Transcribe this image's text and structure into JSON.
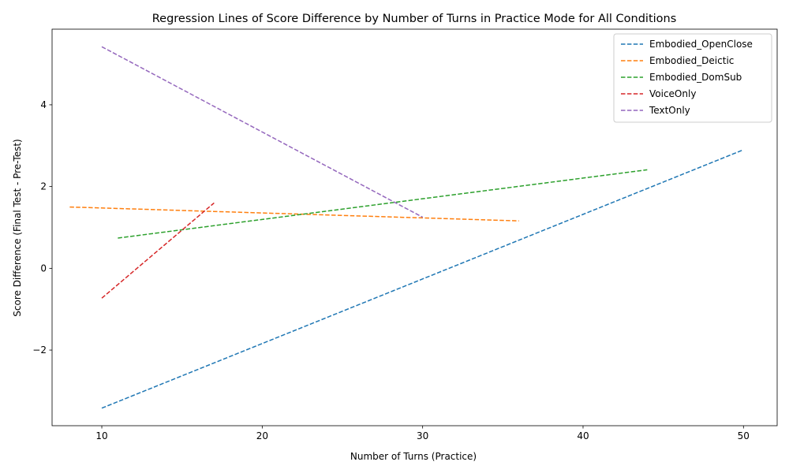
{
  "chart_data": {
    "type": "line",
    "title": "Regression Lines of Score Difference by Number of Turns in Practice Mode for All Conditions",
    "xlabel": "Number of Turns (Practice)",
    "ylabel": "Score Difference (Final Test - Pre-Test)",
    "xlim": [
      6.9,
      52.1
    ],
    "ylim": [
      -3.85,
      5.85
    ],
    "x_ticks": [
      10,
      20,
      30,
      40,
      50
    ],
    "y_ticks": [
      -2,
      0,
      2,
      4
    ],
    "grid": false,
    "legend_position": "top-right",
    "line_style": "dashed",
    "series": [
      {
        "name": "Embodied_OpenClose",
        "color": "#1f77b4",
        "x": [
          10,
          50
        ],
        "y": [
          -3.42,
          2.9
        ]
      },
      {
        "name": "Embodied_Deictic",
        "color": "#ff7f0e",
        "x": [
          8,
          36
        ],
        "y": [
          1.5,
          1.16
        ]
      },
      {
        "name": "Embodied_DomSub",
        "color": "#2ca02c",
        "x": [
          11,
          44
        ],
        "y": [
          0.74,
          2.41
        ]
      },
      {
        "name": "VoiceOnly",
        "color": "#d62728",
        "x": [
          10,
          17
        ],
        "y": [
          -0.73,
          1.6
        ]
      },
      {
        "name": "TextOnly",
        "color": "#9467bd",
        "x": [
          10,
          30
        ],
        "y": [
          5.42,
          1.25
        ]
      }
    ]
  }
}
